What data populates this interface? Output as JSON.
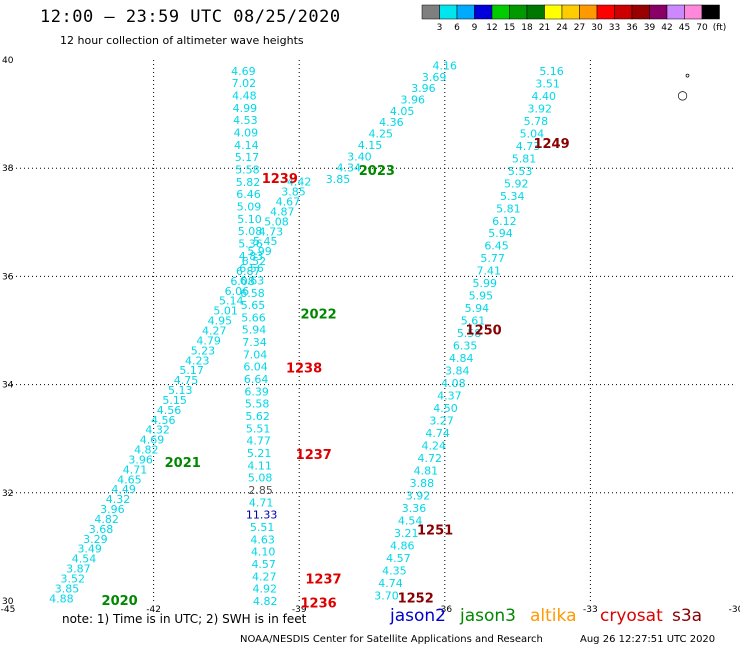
{
  "header": {
    "title": "12:00 – 23:59 UTC 08/25/2020",
    "subtitle": "12 hour collection of altimeter wave heights"
  },
  "color_scale": {
    "labels": [
      "3",
      "6",
      "9",
      "12",
      "15",
      "18",
      "21",
      "24",
      "27",
      "30",
      "33",
      "36",
      "39",
      "42",
      "45",
      "70",
      "(ft)"
    ],
    "colors": [
      "#7f7f7f",
      "#00e5ee",
      "#00aaff",
      "#0000dd",
      "#00cc00",
      "#009900",
      "#007700",
      "#ffff00",
      "#ffcc00",
      "#ff9900",
      "#ff0000",
      "#cc0000",
      "#990000",
      "#880066",
      "#cc88ff",
      "#ff88dd",
      "#000000"
    ]
  },
  "footer": {
    "note": "note:  1) Time is in UTC;  2) SWH is in feet",
    "credit": "NOAA/NESDIS Center for Satellite Applications and Research",
    "timestamp": "Aug 26 12:27:51 UTC 2020",
    "satellites": [
      {
        "name": "jason2",
        "color": "#0000cc"
      },
      {
        "name": "jason3",
        "color": "#008800"
      },
      {
        "name": "altika",
        "color": "#ff9900"
      },
      {
        "name": "cryosat",
        "color": "#dd0000"
      },
      {
        "name": "s3a",
        "color": "#880000"
      }
    ]
  },
  "chart_data": {
    "type": "scatter",
    "xlim": [
      -45,
      -30
    ],
    "ylim": [
      30,
      40
    ],
    "x_ticks": [
      -45,
      -42,
      -39,
      -36,
      -33,
      -30
    ],
    "x_tick_labels": [
      "-45",
      "-42",
      "-39",
      "-36",
      "-33",
      "-30"
    ],
    "y_ticks": [
      30,
      32,
      34,
      36,
      38,
      40
    ],
    "y_tick_labels": [
      "30",
      "32",
      "34",
      "36",
      "38",
      "40"
    ],
    "grid": true,
    "tracks": [
      {
        "name": "track-a",
        "start": [
          -43.9,
          30.05
        ],
        "end": [
          -39.0,
          37.75
        ],
        "values": [
          "4.88",
          "3.85",
          "3.52",
          "3.87",
          "4.54",
          "3.49",
          "3.29",
          "3.68",
          "4.82",
          "3.96",
          "4.32",
          "4.49",
          "4.65",
          "4.71",
          "3.96",
          "4.82",
          "4.69",
          "4.32",
          "4.56",
          "4.56",
          "5.15",
          "5.13",
          "4.75",
          "5.17",
          "4.23",
          "5.23",
          "4.79",
          "4.27",
          "4.95",
          "5.01",
          "5.14",
          "6.06",
          "6.08",
          "6.87",
          "6.52",
          "5.99",
          "5.45",
          "4.73",
          "5.08",
          "4.87",
          "4.67",
          "3.85",
          "4.42"
        ]
      },
      {
        "name": "track-b",
        "start": [
          -38.2,
          37.8
        ],
        "end": [
          -36.0,
          39.9
        ],
        "values": [
          "3.85",
          "4.34",
          "3.40",
          "4.15",
          "4.25",
          "4.36",
          "4.05",
          "3.96",
          "3.96",
          "3.69",
          "4.16"
        ]
      },
      {
        "name": "track-c",
        "start": [
          -40.15,
          39.8
        ],
        "end": [
          -39.7,
          30.0
        ],
        "values": [
          "4.69",
          "7.02",
          "4.48",
          "4.99",
          "4.53",
          "4.09",
          "4.14",
          "5.17",
          "5.58",
          "5.82",
          "6.46",
          "5.09",
          "5.10",
          "5.08",
          "5.36",
          "4.83",
          "6.56",
          "6.63",
          "6.58",
          "5.65",
          "5.66",
          "5.94",
          "7.34",
          "7.04",
          "6.04",
          "6.64",
          "6.39",
          "5.58",
          "5.62",
          "5.51",
          "4.77",
          "5.21",
          "4.11",
          "5.08",
          "2.85",
          "4.71",
          "11.33",
          "5.51",
          "4.63",
          "4.10",
          "4.57",
          "4.27",
          "4.92",
          "4.82"
        ]
      },
      {
        "name": "track-d",
        "start": [
          -33.8,
          39.8
        ],
        "end": [
          -37.2,
          30.1
        ],
        "values": [
          "5.16",
          "3.51",
          "4.40",
          "3.92",
          "5.78",
          "5.04",
          "4.73",
          "5.81",
          "5.53",
          "5.92",
          "5.34",
          "5.81",
          "6.12",
          "5.94",
          "6.45",
          "5.77",
          "7.41",
          "5.99",
          "5.95",
          "5.94",
          "5.61",
          "5.58",
          "6.35",
          "4.84",
          "3.84",
          "4.08",
          "4.37",
          "4.50",
          "3.27",
          "4.74",
          "4.24",
          "4.72",
          "4.81",
          "3.88",
          "3.92",
          "3.36",
          "4.54",
          "3.21",
          "4.86",
          "4.57",
          "4.35",
          "4.74",
          "3.70"
        ]
      }
    ],
    "value_colors": {
      "2.85": "#555555",
      "11.33": "#0000aa"
    },
    "pass_labels": [
      {
        "text": "2020",
        "x": -42.7,
        "y": 30.0,
        "color": "#008800"
      },
      {
        "text": "2021",
        "x": -41.4,
        "y": 32.55,
        "color": "#008800"
      },
      {
        "text": "2022",
        "x": -38.6,
        "y": 35.3,
        "color": "#008800"
      },
      {
        "text": "2023",
        "x": -37.4,
        "y": 37.95,
        "color": "#008800"
      },
      {
        "text": "1236",
        "x": -38.6,
        "y": 29.95,
        "color": "#dd0000"
      },
      {
        "text": "1237",
        "x": -38.5,
        "y": 30.4,
        "color": "#dd0000"
      },
      {
        "text": "1237",
        "x": -38.7,
        "y": 32.7,
        "color": "#dd0000"
      },
      {
        "text": "1238",
        "x": -38.9,
        "y": 34.3,
        "color": "#dd0000"
      },
      {
        "text": "1239",
        "x": -39.4,
        "y": 37.8,
        "color": "#dd0000"
      },
      {
        "text": "1249",
        "x": -33.8,
        "y": 38.45,
        "color": "#880000"
      },
      {
        "text": "1250",
        "x": -35.2,
        "y": 35.0,
        "color": "#880000"
      },
      {
        "text": "1251",
        "x": -36.2,
        "y": 31.3,
        "color": "#880000"
      },
      {
        "text": "1252",
        "x": -36.6,
        "y": 30.05,
        "color": "#880000"
      }
    ],
    "markers": [
      {
        "x": -31.1,
        "y": 39.35,
        "glyph": "○"
      },
      {
        "x": -31.0,
        "y": 39.65,
        "glyph": "°"
      }
    ]
  }
}
